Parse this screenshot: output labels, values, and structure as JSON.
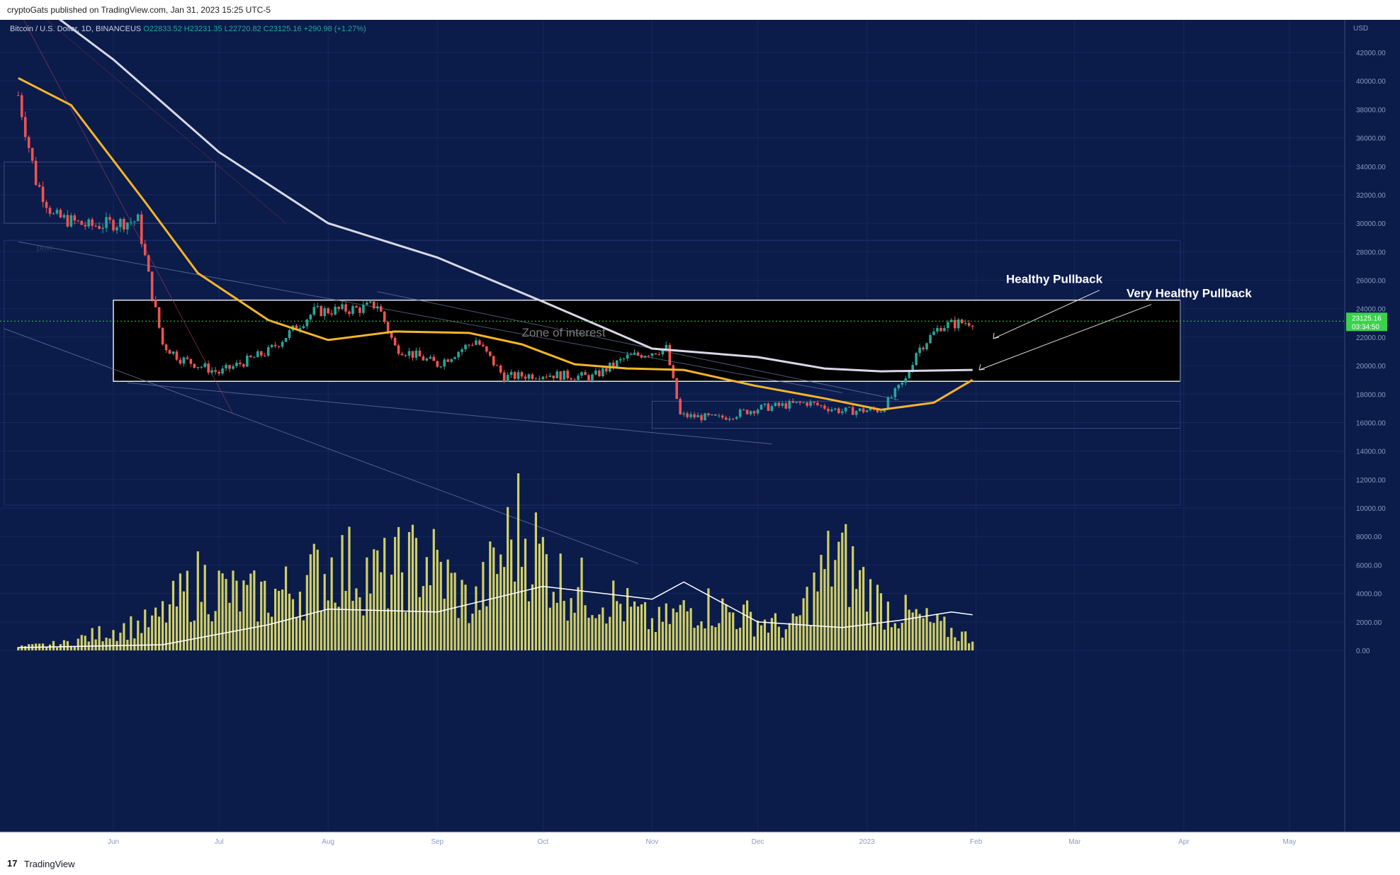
{
  "publisher_text": "cryptoGats published on TradingView.com, Jan 31, 2023 15:25 UTC-5",
  "brand": {
    "logo": "17",
    "name": "TradingView"
  },
  "colors": {
    "background": "#0b1b4a",
    "up": "#26a69a",
    "down": "#ef5350",
    "ema50": "#f5b52a",
    "ma200": "#d8d8e6",
    "volume": "#e6e36a",
    "price_tag": "#3bd14d"
  },
  "chart_data": {
    "type": "line",
    "legend": {
      "symbol": "Bitcoin / U.S. Dollar, 1D, BINANCEUS",
      "open": "O22833.52",
      "high": "H23231.35",
      "low": "L22720.82",
      "close": "C23125.16",
      "change": "+290.98 (+1.27%)"
    },
    "currency_label": "USD",
    "y_ticks": [
      "42000.00",
      "40000.00",
      "38000.00",
      "36000.00",
      "34000.00",
      "32000.00",
      "30000.00",
      "28000.00",
      "26000.00",
      "24000.00",
      "22000.00",
      "20000.00",
      "18000.00",
      "16000.00",
      "14000.00",
      "12000.00",
      "10000.00",
      "8000.00",
      "6000.00",
      "4000.00",
      "2000.00",
      "0.00"
    ],
    "x_ticks": [
      "Jun",
      "Jul",
      "Aug",
      "Sep",
      "Oct",
      "Nov",
      "Dec",
      "2023",
      "Feb",
      "Mar",
      "Apr",
      "May"
    ],
    "last_price": "23125.16",
    "countdown": "03:34:50",
    "annotations": {
      "zone": "Zone of interest",
      "arrow1": "Healthy Pullback",
      "arrow2": "Very Healthy Pullback",
      "label_left": "pow"
    },
    "series": [
      {
        "name": "EMA 50",
        "x": [
          "2022-05-05",
          "2022-05-20",
          "2022-06-10",
          "2022-06-25",
          "2022-07-15",
          "2022-08-01",
          "2022-08-20",
          "2022-09-10",
          "2022-09-25",
          "2022-10-10",
          "2022-10-25",
          "2022-11-10",
          "2022-11-30",
          "2022-12-20",
          "2023-01-05",
          "2023-01-20",
          "2023-01-31"
        ],
        "values": [
          40200,
          38300,
          31500,
          26500,
          23200,
          21800,
          22400,
          22300,
          21500,
          20100,
          19800,
          19700,
          18600,
          17700,
          16900,
          17400,
          19000
        ]
      },
      {
        "name": "MA 200",
        "x": [
          "2022-05-05",
          "2022-06-01",
          "2022-07-01",
          "2022-08-01",
          "2022-09-01",
          "2022-10-01",
          "2022-11-01",
          "2022-12-01",
          "2022-12-20",
          "2023-01-05",
          "2023-01-31"
        ],
        "values": [
          46500,
          41500,
          35000,
          30000,
          27600,
          24500,
          21200,
          20600,
          19800,
          19600,
          19700
        ]
      },
      {
        "name": "Volume",
        "values": [
          300,
          600,
          1700,
          2500,
          6000,
          4500,
          5200,
          7600,
          6400,
          8100,
          3700,
          10800,
          5800,
          4600,
          2300,
          4000,
          3000,
          1800,
          8500,
          3900,
          2500,
          1000
        ]
      }
    ]
  }
}
